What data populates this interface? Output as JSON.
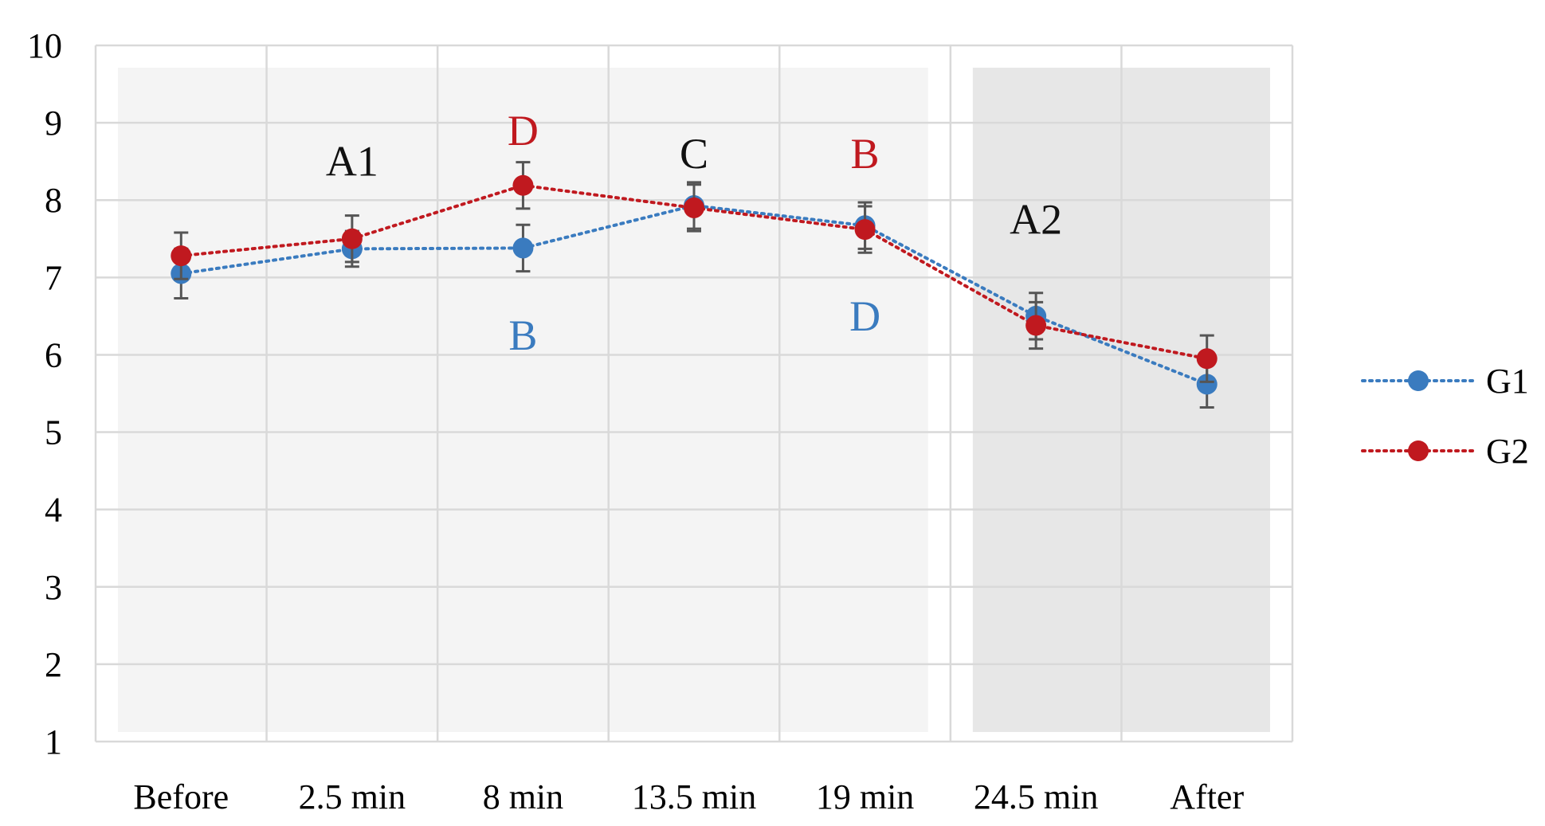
{
  "chart_data": {
    "type": "line",
    "title": "",
    "xlabel": "",
    "ylabel": "",
    "categories": [
      "Before",
      "2.5 min",
      "8 min",
      "13.5 min",
      "19 min",
      "24.5 min",
      "After"
    ],
    "ylim": [
      1,
      10
    ],
    "yticks": [
      1,
      2,
      3,
      4,
      5,
      6,
      7,
      8,
      9,
      10
    ],
    "grid": true,
    "legend_position": "right",
    "series": [
      {
        "name": "G1",
        "color": "#3a7bbf",
        "line_style": "dotted",
        "values": [
          7.05,
          7.37,
          7.38,
          7.93,
          7.67,
          6.5,
          5.62
        ],
        "error": [
          0.32,
          0.23,
          0.3,
          0.3,
          0.3,
          0.3,
          0.3
        ]
      },
      {
        "name": "G2",
        "color": "#c0191f",
        "line_style": "dotted",
        "values": [
          7.28,
          7.5,
          8.19,
          7.9,
          7.62,
          6.38,
          5.95
        ],
        "error": [
          0.3,
          0.3,
          0.3,
          0.3,
          0.3,
          0.3,
          0.3
        ]
      }
    ],
    "shaded_regions": [
      {
        "from_category": "Before",
        "to_category": "19 min",
        "color": "#f4f4f4"
      },
      {
        "from_category": "24.5 min",
        "to_category": "After",
        "color": "#e7e7e7"
      }
    ],
    "annotations": [
      {
        "text": "A1",
        "category": "2.5 min",
        "y": 8.5,
        "color": "#111111"
      },
      {
        "text": "D",
        "category": "8 min",
        "y": 8.9,
        "color": "#c0191f"
      },
      {
        "text": "B",
        "category": "8 min",
        "y": 6.25,
        "color": "#3a7bbf"
      },
      {
        "text": "C",
        "category": "13.5 min",
        "y": 8.6,
        "color": "#111111"
      },
      {
        "text": "B",
        "category": "19 min",
        "y": 8.6,
        "color": "#c0191f"
      },
      {
        "text": "D",
        "category": "19 min",
        "y": 6.5,
        "color": "#3a7bbf"
      },
      {
        "text": "A2",
        "category": "24.5 min",
        "y": 7.75,
        "color": "#111111"
      }
    ]
  }
}
